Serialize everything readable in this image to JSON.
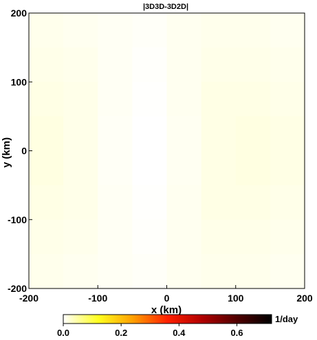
{
  "chart_data": {
    "type": "heatmap",
    "title": "|3D3D-3D2D|",
    "xlabel": "x (km)",
    "ylabel": "y (km)",
    "xlim": [
      -200,
      200
    ],
    "ylim": [
      -200,
      200
    ],
    "xticks": [
      -200,
      -100,
      0,
      100,
      200
    ],
    "yticks": [
      -200,
      -100,
      0,
      100,
      200
    ],
    "xtick_labels": [
      "-200",
      "-100",
      "0",
      "100",
      "200"
    ],
    "ytick_labels": [
      "-200",
      "-100",
      "0",
      "100",
      "200"
    ],
    "field_description_value": "near-uniform low value (~0.0–0.02) across the whole domain, slightly whiter along x≈-40",
    "grid": [
      [
        0.01,
        0.008,
        0.006,
        0.004,
        0.008,
        0.01,
        0.01,
        0.008
      ],
      [
        0.012,
        0.01,
        0.006,
        0.002,
        0.008,
        0.012,
        0.012,
        0.01
      ],
      [
        0.014,
        0.012,
        0.006,
        0.001,
        0.008,
        0.014,
        0.014,
        0.012
      ],
      [
        0.016,
        0.012,
        0.005,
        0.0,
        0.007,
        0.014,
        0.016,
        0.014
      ],
      [
        0.016,
        0.012,
        0.005,
        0.0,
        0.007,
        0.014,
        0.016,
        0.014
      ],
      [
        0.014,
        0.012,
        0.006,
        0.001,
        0.008,
        0.014,
        0.014,
        0.012
      ],
      [
        0.012,
        0.01,
        0.006,
        0.002,
        0.008,
        0.012,
        0.012,
        0.01
      ],
      [
        0.01,
        0.008,
        0.006,
        0.004,
        0.008,
        0.01,
        0.01,
        0.008
      ]
    ],
    "colorbar": {
      "min": 0.0,
      "max": 0.72,
      "ticks": [
        0.0,
        0.2,
        0.4,
        0.6
      ],
      "tick_labels": [
        "0.0",
        "0.2",
        "0.4",
        "0.6"
      ],
      "unit": "1/day",
      "colormap": "hot_r",
      "stops": [
        "#ffffff",
        "#ffff20",
        "#ffa000",
        "#ff2000",
        "#b00000",
        "#500000",
        "#000000"
      ]
    }
  }
}
